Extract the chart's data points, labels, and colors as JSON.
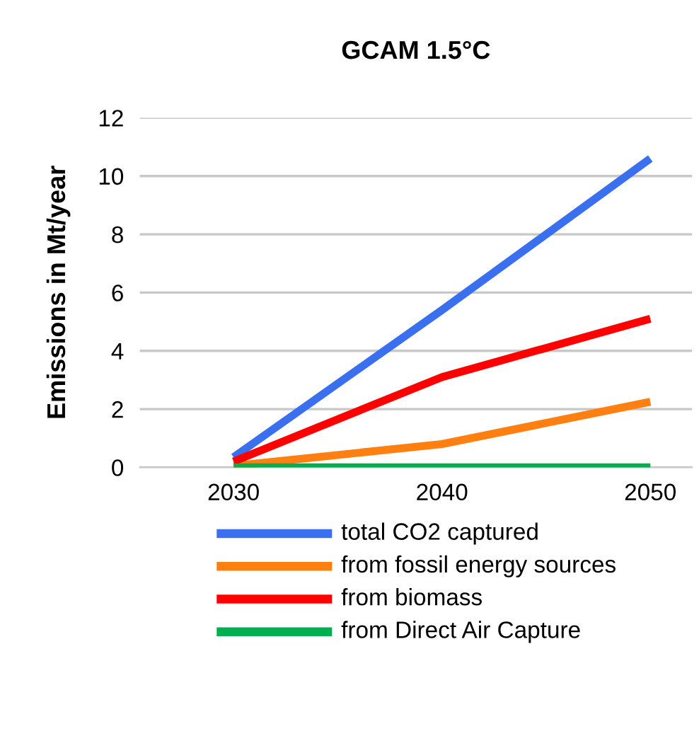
{
  "chart_data": {
    "type": "line",
    "title": "GCAM 1.5°C",
    "ylabel": "Emissions in Mt/year",
    "categories": [
      "2030",
      "2040",
      "2050"
    ],
    "series": [
      {
        "name": "total CO2 captured",
        "color": "#3a6ff0",
        "values": [
          0.35,
          5.4,
          10.6
        ]
      },
      {
        "name": "from fossil energy sources",
        "color": "#ff7f10",
        "values": [
          0.05,
          0.8,
          2.25
        ]
      },
      {
        "name": "from biomass",
        "color": "#ff0000",
        "values": [
          0.2,
          3.1,
          5.1
        ]
      },
      {
        "name": "from Direct Air Capture",
        "color": "#00b050",
        "values": [
          0,
          0,
          0
        ]
      }
    ],
    "ylim": [
      0,
      12
    ],
    "yticks": [
      0,
      2,
      4,
      6,
      8,
      10,
      12
    ],
    "grid": "y",
    "legend": "bottom",
    "marker": "none",
    "line_style": "solid"
  }
}
